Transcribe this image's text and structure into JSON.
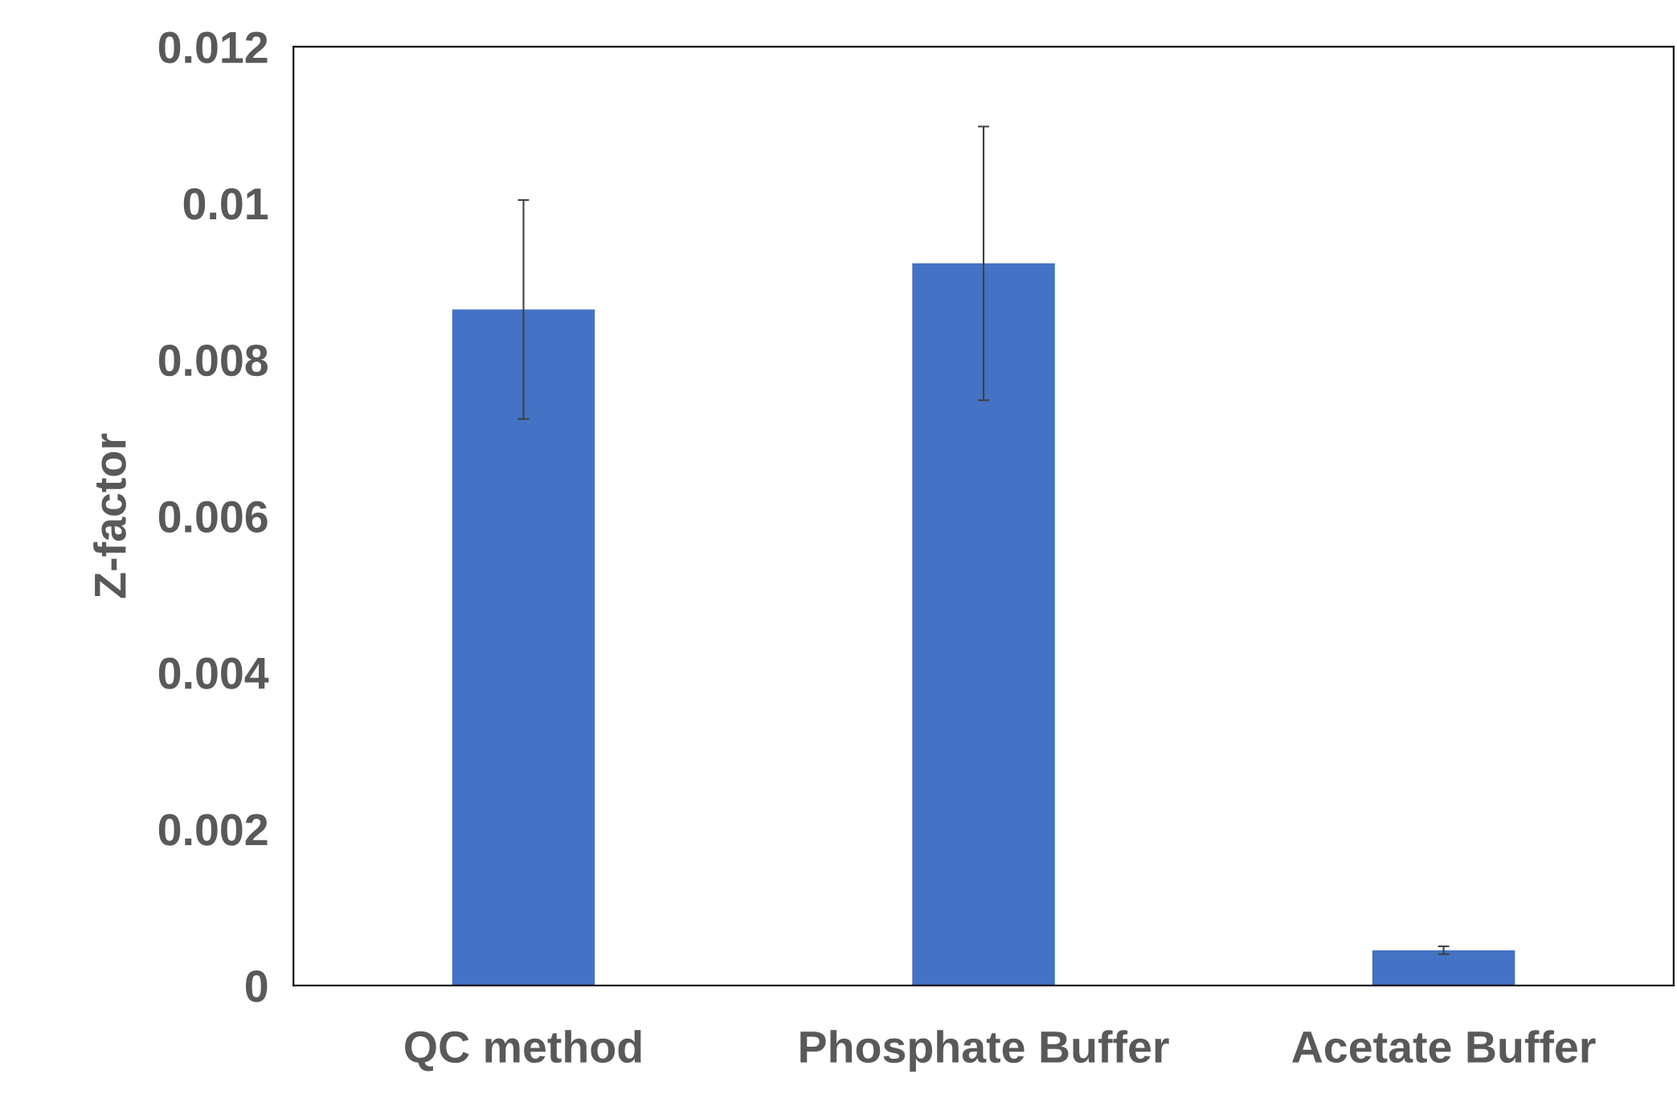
{
  "chart_data": {
    "type": "bar",
    "ylabel": "Z-factor",
    "categories": [
      "QC method",
      "Phosphate Buffer",
      "Acetate Buffer"
    ],
    "values": [
      0.00864,
      0.00923,
      0.00045
    ],
    "errors": [
      0.0014,
      0.00175,
      5e-05
    ],
    "color": "#4472c4",
    "ylim": [
      0,
      0.012
    ],
    "yticks": [
      0,
      0.002,
      0.004,
      0.006,
      0.008,
      0.01,
      0.012
    ],
    "grid": false,
    "legend": false
  }
}
